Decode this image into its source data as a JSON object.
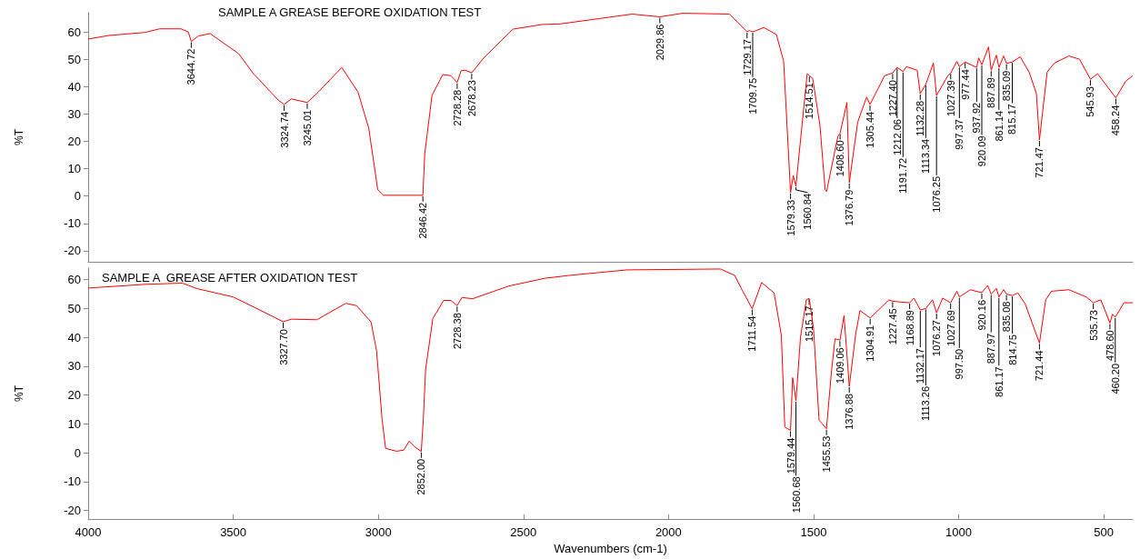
{
  "chart_data": [
    {
      "type": "line",
      "title": "SAMPLE A GREASE BEFORE OXIDATION TEST",
      "ylabel": "%T",
      "color": "#ff0000",
      "grid": false,
      "tick_labels": "y",
      "xlim": [
        4000,
        400
      ],
      "ylim": [
        -24,
        67
      ],
      "yticks": [
        -20,
        -10,
        0,
        10,
        20,
        30,
        40,
        50,
        60
      ],
      "x": [
        4000,
        3928,
        3804,
        3754,
        3680,
        3655,
        3644.72,
        3620,
        3580,
        3481,
        3431,
        3344,
        3324.74,
        3300,
        3245.01,
        3207,
        3126,
        3070,
        3033,
        3002,
        2983,
        2859,
        2846.42,
        2840,
        2815,
        2778,
        2750,
        2728.28,
        2715,
        2700,
        2678.23,
        2635,
        2536,
        2436,
        2374,
        2125,
        2029.86,
        1951,
        1790,
        1729,
        1721,
        1709.75,
        1671,
        1628,
        1603,
        1579.33,
        1570,
        1560.84,
        1522,
        1514.51,
        1503,
        1478,
        1460,
        1455,
        1416,
        1408.6,
        1385,
        1376.79,
        1348,
        1317,
        1305.44,
        1255,
        1227.4,
        1212.06,
        1191.72,
        1180,
        1143,
        1132.28,
        1113.34,
        1087,
        1076.25,
        1037,
        1027.39,
        1006,
        997.37,
        977.44,
        937.92,
        931,
        920.09,
        897,
        887.89,
        870,
        861.14,
        845,
        835.09,
        815.17,
        788,
        757,
        732,
        721.47,
        695,
        670,
        620,
        583,
        545.93,
        521,
        458.24,
        424,
        400
      ],
      "values": [
        57.4,
        58.7,
        59.8,
        61.1,
        61.1,
        60,
        56.5,
        58.5,
        59.4,
        52,
        44.8,
        35,
        33.5,
        35.5,
        34.2,
        38,
        47,
        38,
        24.8,
        2.3,
        0.3,
        0.3,
        0.3,
        15.5,
        36.8,
        44.4,
        44,
        41.5,
        45.8,
        46,
        45,
        50.7,
        61,
        62.7,
        62.9,
        66.5,
        65.5,
        66.8,
        66.5,
        60,
        60.5,
        60,
        61.6,
        59,
        49.2,
        1.3,
        7.5,
        3.6,
        44.7,
        44,
        43,
        25.8,
        2.3,
        1.7,
        21.9,
        23,
        34.2,
        5,
        27,
        36.2,
        33.5,
        44,
        45,
        47,
        45.5,
        47.3,
        46,
        37.5,
        40.8,
        48.6,
        36.8,
        44,
        45,
        49.2,
        47.3,
        49,
        47,
        50.5,
        48,
        54.5,
        46,
        51.5,
        47,
        51.2,
        48.5,
        49,
        50.9,
        45.3,
        37.5,
        20.5,
        45.3,
        48.6,
        51.2,
        50,
        42.7,
        44.7,
        35.9,
        42,
        44
      ],
      "annotations": [
        {
          "text": "3644.72",
          "x": 3644.72,
          "y": 56.5
        },
        {
          "text": "3324.74",
          "x": 3324.74,
          "y": 33.5
        },
        {
          "text": "3245.01",
          "x": 3245.01,
          "y": 34.2
        },
        {
          "text": "2846.42",
          "x": 2846.42,
          "y": 0.3
        },
        {
          "text": "2728.28",
          "x": 2728.28,
          "y": 41.5
        },
        {
          "text": "2678.23",
          "x": 2678.23,
          "y": 45
        },
        {
          "text": "2029.86",
          "x": 2029.86,
          "y": 65.5
        },
        {
          "text": "1729.17",
          "x": 1729.17,
          "y": 60
        },
        {
          "text": "1709.75",
          "x": 1709.75,
          "y": 60
        },
        {
          "text": "1579.33",
          "x": 1579.33,
          "y": 1.3
        },
        {
          "text": "1560.84",
          "x": 1560.84,
          "y": 3.6
        },
        {
          "text": "1514.51",
          "x": 1514.51,
          "y": 44
        },
        {
          "text": "1408.60",
          "x": 1408.6,
          "y": 23
        },
        {
          "text": "1376.79",
          "x": 1376.79,
          "y": 5
        },
        {
          "text": "1305.44",
          "x": 1305.44,
          "y": 33.5
        },
        {
          "text": "1227.40",
          "x": 1227.4,
          "y": 45
        },
        {
          "text": "1212.06",
          "x": 1212.06,
          "y": 47
        },
        {
          "text": "1191.72",
          "x": 1191.72,
          "y": 45.5
        },
        {
          "text": "1132.28",
          "x": 1132.28,
          "y": 37.5
        },
        {
          "text": "1113.34",
          "x": 1113.34,
          "y": 40.8
        },
        {
          "text": "1076.25",
          "x": 1076.25,
          "y": 36.8
        },
        {
          "text": "1027.39",
          "x": 1027.39,
          "y": 45
        },
        {
          "text": "997.37",
          "x": 997.37,
          "y": 47.3
        },
        {
          "text": "977.44",
          "x": 977.44,
          "y": 49
        },
        {
          "text": "937.92",
          "x": 937.92,
          "y": 47
        },
        {
          "text": "920.09",
          "x": 920.09,
          "y": 48
        },
        {
          "text": "887.89",
          "x": 887.89,
          "y": 46
        },
        {
          "text": "861.14",
          "x": 861.14,
          "y": 47
        },
        {
          "text": "835.09",
          "x": 835.09,
          "y": 48.5
        },
        {
          "text": "815.17",
          "x": 815.17,
          "y": 49
        },
        {
          "text": "721.47",
          "x": 721.47,
          "y": 20.5
        },
        {
          "text": "545.93",
          "x": 545.93,
          "y": 42.7
        },
        {
          "text": "458.24",
          "x": 458.24,
          "y": 35.9
        }
      ]
    },
    {
      "type": "line",
      "title": "SAMPLE A  GREASE AFTER OXIDATION TEST",
      "ylabel": "%T",
      "xlabel": "Wavenumbers (cm-1)",
      "color": "#ff0000",
      "grid": false,
      "xlim": [
        4000,
        400
      ],
      "xticks": [
        4000,
        3500,
        3000,
        2500,
        2000,
        1500,
        1000,
        500
      ],
      "ylim": [
        -23,
        64
      ],
      "yticks": [
        -20,
        -10,
        0,
        10,
        20,
        30,
        40,
        50,
        60
      ],
      "x": [
        4000,
        3800,
        3675,
        3625,
        3500,
        3425,
        3327.7,
        3300,
        3212,
        3112,
        3075,
        3025,
        3006,
        2987,
        2975,
        2937,
        2912,
        2894,
        2875,
        2852,
        2845,
        2837,
        2812,
        2775,
        2750,
        2728.38,
        2712,
        2675,
        2550,
        2425,
        2340,
        2142,
        1821,
        1772,
        1747,
        1711.54,
        1679,
        1636,
        1611,
        1599,
        1579.44,
        1572,
        1560.68,
        1545,
        1525,
        1515.17,
        1500,
        1481,
        1455.53,
        1438,
        1426,
        1409.06,
        1395,
        1376.88,
        1355,
        1340,
        1304.91,
        1240,
        1227.45,
        1168.89,
        1154,
        1132.17,
        1113.26,
        1090,
        1076.27,
        1055,
        1027.69,
        1006,
        997.5,
        960,
        920.16,
        900,
        887.97,
        870,
        861.17,
        845,
        835.08,
        814.75,
        796,
        771,
        721.44,
        700,
        680,
        620,
        560,
        535.73,
        510,
        478.6,
        470,
        460.2,
        430,
        400
      ],
      "values": [
        57.1,
        58.4,
        58.8,
        56.9,
        54,
        50.3,
        45.4,
        46.3,
        46.1,
        51.8,
        51,
        45.3,
        35.3,
        11.5,
        1.5,
        0.5,
        0.9,
        4,
        2.1,
        0.4,
        11.5,
        29,
        46.5,
        52.8,
        52.8,
        51,
        53.8,
        53.4,
        57.8,
        60.5,
        61.5,
        63.4,
        63.7,
        61.5,
        56.6,
        49.9,
        59,
        55.4,
        40.7,
        8.9,
        7.7,
        26,
        18,
        40,
        53,
        53.5,
        43,
        11.3,
        8.3,
        28.5,
        39.5,
        39,
        47.5,
        23,
        41,
        49.3,
        46.7,
        53,
        52.5,
        52,
        53.6,
        49.5,
        50,
        53,
        48.5,
        53.6,
        52,
        56,
        54,
        56.5,
        55.5,
        58,
        55,
        57,
        54,
        56.5,
        55,
        54.5,
        55.4,
        51.7,
        38,
        53,
        56,
        56.5,
        54,
        52,
        53,
        45,
        48,
        47,
        52,
        52
      ],
      "annotations": [
        {
          "text": "3327.70",
          "x": 3327.7,
          "y": 45.4
        },
        {
          "text": "2852.00",
          "x": 2852,
          "y": 0.4
        },
        {
          "text": "2728.38",
          "x": 2728.38,
          "y": 51
        },
        {
          "text": "1711.54",
          "x": 1711.54,
          "y": 49.9
        },
        {
          "text": "1579.44",
          "x": 1579.44,
          "y": 7.7
        },
        {
          "text": "1560.68",
          "x": 1560.68,
          "y": 18
        },
        {
          "text": "1515.17",
          "x": 1515.17,
          "y": 53.5
        },
        {
          "text": "1455.53",
          "x": 1455.53,
          "y": 8.3
        },
        {
          "text": "1409.06",
          "x": 1409.06,
          "y": 39
        },
        {
          "text": "1376.88",
          "x": 1376.88,
          "y": 23
        },
        {
          "text": "1304.91",
          "x": 1304.91,
          "y": 46.7
        },
        {
          "text": "1227.45",
          "x": 1227.45,
          "y": 52.5
        },
        {
          "text": "1168.89",
          "x": 1168.89,
          "y": 52
        },
        {
          "text": "1132.17",
          "x": 1132.17,
          "y": 49.5
        },
        {
          "text": "1113.26",
          "x": 1113.26,
          "y": 50
        },
        {
          "text": "1076.27",
          "x": 1076.27,
          "y": 48.5
        },
        {
          "text": "1027.69",
          "x": 1027.69,
          "y": 52
        },
        {
          "text": "997.50",
          "x": 997.5,
          "y": 54
        },
        {
          "text": "920.16",
          "x": 920.16,
          "y": 55.5
        },
        {
          "text": "887.97",
          "x": 887.97,
          "y": 55
        },
        {
          "text": "861.17",
          "x": 861.17,
          "y": 54
        },
        {
          "text": "835.08",
          "x": 835.08,
          "y": 55
        },
        {
          "text": "814.75",
          "x": 814.75,
          "y": 54.5
        },
        {
          "text": "721.44",
          "x": 721.44,
          "y": 38
        },
        {
          "text": "535.73",
          "x": 535.73,
          "y": 52
        },
        {
          "text": "478.60",
          "x": 478.6,
          "y": 45
        },
        {
          "text": "460.20",
          "x": 460.2,
          "y": 47
        }
      ]
    }
  ]
}
